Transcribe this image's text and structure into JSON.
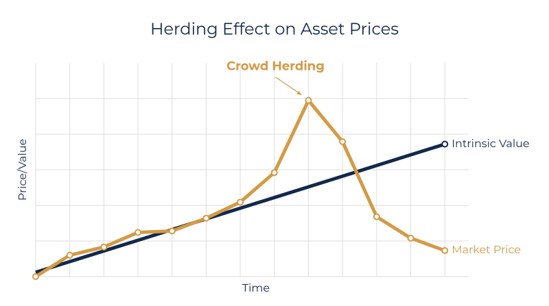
{
  "chart_data": {
    "type": "line",
    "title": "Herding Effect on Asset Prices",
    "x_label": "Time",
    "y_label": "Price/Value",
    "annotation": {
      "text": "Crowd Herding",
      "series": 1,
      "index": 8
    },
    "x": [
      0,
      1,
      2,
      3,
      4,
      5,
      6,
      7,
      8,
      9,
      10,
      11,
      12
    ],
    "xlim": [
      0,
      12.7
    ],
    "ylim": [
      0,
      6
    ],
    "xticks": [
      0,
      1,
      2,
      3,
      4,
      5,
      6,
      7,
      8,
      9,
      10,
      11,
      12
    ],
    "yticks": [
      0,
      1,
      2,
      3,
      4,
      5
    ],
    "grid": true,
    "series": [
      {
        "name": "Intrinsic Value",
        "color": "#13294b",
        "marker": "last",
        "values": [
          0.12,
          0.42,
          0.72,
          1.02,
          1.32,
          1.62,
          1.92,
          2.22,
          2.52,
          2.82,
          3.12,
          3.42,
          3.72
        ]
      },
      {
        "name": "Market Price",
        "color": "#d49a45",
        "marker": "all",
        "values": [
          0.0,
          0.6,
          0.83,
          1.24,
          1.28,
          1.64,
          2.09,
          2.92,
          4.95,
          3.79,
          1.68,
          1.08,
          0.73
        ]
      }
    ]
  }
}
